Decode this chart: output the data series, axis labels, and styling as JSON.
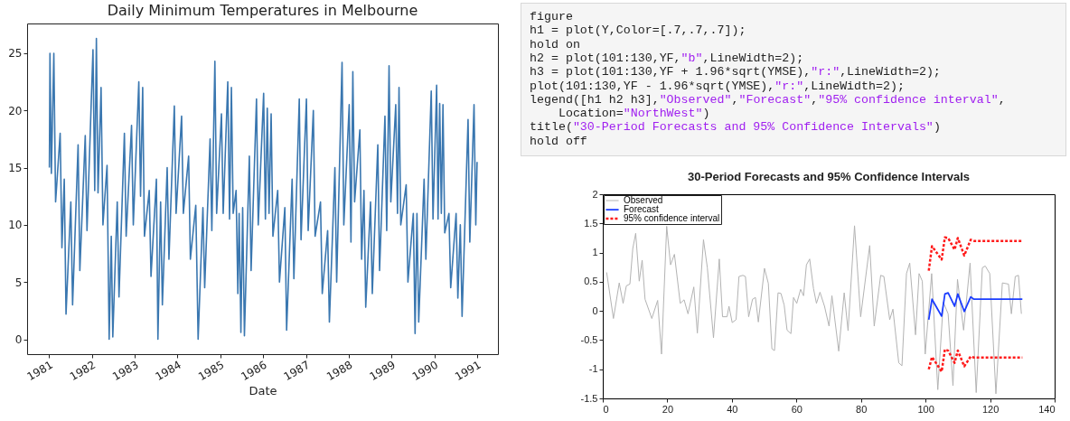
{
  "chart_data": [
    {
      "type": "line",
      "title": "Daily Minimum Temperatures in Melbourne",
      "xlabel": "Date",
      "color": "#3a77b0",
      "line_style": "solid",
      "xlim": [
        "1980-06-27",
        "1991-06-27"
      ],
      "xticks": [
        {
          "value": "1981",
          "label": "1981"
        },
        {
          "value": "1982",
          "label": "1982"
        },
        {
          "value": "1983",
          "label": "1983"
        },
        {
          "value": "1984",
          "label": "1984"
        },
        {
          "value": "1985",
          "label": "1985"
        },
        {
          "value": "1986",
          "label": "1986"
        },
        {
          "value": "1987",
          "label": "1987"
        },
        {
          "value": "1988",
          "label": "1988"
        },
        {
          "value": "1989",
          "label": "1989"
        },
        {
          "value": "1990",
          "label": "1990"
        },
        {
          "value": "1991",
          "label": "1991"
        }
      ],
      "ylim": [
        -1.3,
        27.6
      ],
      "yticks": [
        0,
        5,
        10,
        15,
        20,
        25
      ],
      "x": [
        "1981-01-03",
        "1981-01-08",
        "1981-01-20",
        "1981-02-10",
        "1981-02-25",
        "1981-04-05",
        "1981-04-20",
        "1981-05-10",
        "1981-05-25",
        "1981-07-05",
        "1981-07-20",
        "1981-09-05",
        "1981-09-20",
        "1981-11-05",
        "1981-11-20",
        "1982-01-10",
        "1982-01-25",
        "1982-02-08",
        "1982-02-22",
        "1982-03-20",
        "1982-04-05",
        "1982-05-10",
        "1982-05-28",
        "1982-06-15",
        "1982-06-28",
        "1982-08-05",
        "1982-08-20",
        "1982-10-05",
        "1982-10-20",
        "1982-12-05",
        "1982-12-20",
        "1983-02-05",
        "1983-02-20",
        "1983-03-10",
        "1983-03-25",
        "1983-05-05",
        "1983-05-20",
        "1983-07-05",
        "1983-07-18",
        "1983-08-10",
        "1983-08-25",
        "1983-10-05",
        "1983-10-20",
        "1983-12-05",
        "1983-12-20",
        "1984-02-05",
        "1984-02-20",
        "1984-04-05",
        "1984-04-20",
        "1984-06-05",
        "1984-06-25",
        "1984-08-05",
        "1984-08-20",
        "1984-10-05",
        "1984-10-20",
        "1984-11-15",
        "1984-11-30",
        "1985-01-10",
        "1985-01-25",
        "1985-03-05",
        "1985-03-20",
        "1985-04-05",
        "1985-04-20",
        "1985-05-15",
        "1985-05-30",
        "1985-06-10",
        "1985-06-25",
        "1985-07-10",
        "1985-07-25",
        "1985-09-05",
        "1985-09-20",
        "1985-11-05",
        "1985-11-20",
        "1986-01-05",
        "1986-01-20",
        "1986-02-05",
        "1986-02-20",
        "1986-03-10",
        "1986-03-25",
        "1986-05-05",
        "1986-05-20",
        "1986-07-05",
        "1986-07-20",
        "1986-09-05",
        "1986-09-20",
        "1986-11-05",
        "1986-11-20",
        "1987-01-05",
        "1987-01-20",
        "1987-03-05",
        "1987-03-20",
        "1987-05-05",
        "1987-05-20",
        "1987-07-05",
        "1987-07-20",
        "1987-09-05",
        "1987-09-20",
        "1987-11-05",
        "1987-11-20",
        "1988-01-05",
        "1988-01-20",
        "1988-02-05",
        "1988-02-20",
        "1988-04-05",
        "1988-04-20",
        "1988-05-10",
        "1988-05-25",
        "1988-07-05",
        "1988-07-20",
        "1988-09-05",
        "1988-09-20",
        "1988-11-05",
        "1988-11-20",
        "1988-12-10",
        "1988-12-25",
        "1989-02-05",
        "1989-02-20",
        "1989-03-05",
        "1989-03-20",
        "1989-05-05",
        "1989-05-20",
        "1989-07-05",
        "1989-07-20",
        "1989-08-05",
        "1989-08-20",
        "1989-10-05",
        "1989-10-20",
        "1989-12-05",
        "1989-12-20",
        "1990-01-20",
        "1990-02-01",
        "1990-02-15",
        "1990-03-01",
        "1990-03-15",
        "1990-03-30",
        "1990-05-05",
        "1990-05-20",
        "1990-07-05",
        "1990-07-20",
        "1990-08-10",
        "1990-08-25",
        "1990-10-15",
        "1990-10-30",
        "1990-12-05",
        "1990-12-20",
        "1990-12-31"
      ],
      "values": [
        15,
        25,
        14.5,
        25,
        12,
        18,
        8,
        14,
        2.2,
        12,
        3,
        17,
        6,
        17.8,
        9.5,
        25.3,
        13,
        26.3,
        12.8,
        22,
        10,
        15.2,
        0,
        9,
        0.2,
        12,
        3.7,
        18,
        9,
        18.7,
        10,
        22.5,
        12.5,
        22,
        9,
        13,
        5.5,
        14,
        0,
        12,
        3,
        15,
        7,
        20.4,
        11,
        19.5,
        11,
        16,
        7,
        11.7,
        0,
        11.5,
        4.5,
        17.5,
        9.5,
        24.3,
        11,
        19.7,
        11,
        22.5,
        10.5,
        22,
        11,
        13,
        4,
        11,
        0.6,
        11.5,
        0.3,
        16,
        6,
        21,
        10,
        21.5,
        10.5,
        20.2,
        11,
        19.7,
        9,
        13,
        5,
        11.5,
        0.8,
        14,
        5.3,
        21,
        8.7,
        21,
        9.5,
        20,
        9,
        12,
        4,
        9.5,
        1.5,
        15,
        5,
        24.2,
        10,
        20.5,
        8.5,
        23.4,
        12,
        18.3,
        7,
        13,
        2.8,
        12,
        4,
        17,
        6,
        19.5,
        9.5,
        23.9,
        12,
        20.5,
        11,
        22,
        10,
        13.5,
        5,
        11,
        0.5,
        11,
        1.5,
        14,
        7,
        21.7,
        10.5,
        22.2,
        10.5,
        20.6,
        11,
        20.5,
        9.3,
        11,
        4.5,
        11,
        3.6,
        10,
        2,
        19.2,
        8.5,
        20.5,
        10,
        15.5
      ]
    },
    {
      "type": "other",
      "annotations": [
        "figure",
        "h1 = plot(Y,Color=[.7,.7,.7]);",
        "hold on",
        "h2 = plot(101:130,YF,\"b\",LineWidth=2);",
        "h3 = plot(101:130,YF + 1.96*sqrt(YMSE),\"r:\",LineWidth=2);",
        "plot(101:130,YF - 1.96*sqrt(YMSE),\"r:\",LineWidth=2);",
        "legend([h1 h2 h3],\"Observed\",\"Forecast\",\"95% confidence interval\",",
        "    Location=\"NorthWest\")",
        "title(\"30-Period Forecasts and 95% Confidence Intervals\")",
        "hold off"
      ]
    },
    {
      "type": "line",
      "title": "30-Period Forecasts and 95% Confidence Intervals",
      "xlim": [
        0,
        140
      ],
      "xticks": [
        0,
        20,
        40,
        60,
        80,
        100,
        120,
        140
      ],
      "ylim": [
        -1.5,
        2
      ],
      "yticks": [
        -1.5,
        -1,
        -0.5,
        0,
        0.5,
        1,
        1.5,
        2
      ],
      "legend": "top left",
      "series": [
        {
          "name": "Observed",
          "color": "#b3b3b3",
          "line_style": "solid",
          "x": [
            1.2,
            3.3,
            5.1,
            6.3,
            7.3,
            8.4,
            9.3,
            10.2,
            11.3,
            12.2,
            13.1,
            15.2,
            17,
            18.2,
            19.8,
            21,
            22.2,
            24,
            25.2,
            26.4,
            28.2,
            29.3,
            31.2,
            32.4,
            34.3,
            36.1,
            37.1,
            38.5,
            39.1,
            40.1,
            41.3,
            42.2,
            43.4,
            44.2,
            45.2,
            46.4,
            47.3,
            48.2,
            50.1,
            51.3,
            52.4,
            53.2,
            54.3,
            55.2,
            56.2,
            57.1,
            58.3,
            59.1,
            60.1,
            61.3,
            62.2,
            63.1,
            64.1,
            65.3,
            66.2,
            67.3,
            68.7,
            70.1,
            71,
            73.1,
            74.8,
            76,
            78,
            79.9,
            82.7,
            84.1,
            86.1,
            87.1,
            88.9,
            89.9,
            91.7,
            92.7,
            94.1,
            95.1,
            96.9,
            98,
            99,
            99.9,
            101.9,
            103.8,
            105.5,
            107,
            108.5,
            109.9,
            111.8,
            113.8,
            115.7,
            117.6,
            118.5,
            119.9,
            121.8,
            123.8,
            125.7,
            126.6,
            127.8,
            128.8,
            129.7
          ],
          "values": [
            0.66,
            -0.13,
            0.48,
            0.13,
            0.43,
            0.46,
            1.07,
            1.33,
            0.51,
            0.87,
            0.2,
            -0.13,
            0.18,
            -0.74,
            1.45,
            0.79,
            0.97,
            0.13,
            0.19,
            -0.05,
            0.41,
            -0.38,
            1.22,
            0.74,
            -0.46,
            0.89,
            -0.1,
            -0.1,
            0.08,
            -0.2,
            -0.15,
            0.59,
            0.61,
            0.59,
            -0.1,
            0.2,
            0.23,
            -0.19,
            0.73,
            0.47,
            -0.65,
            -0.68,
            0.31,
            0.3,
            0.1,
            -0.33,
            -0.39,
            0.23,
            0.13,
            0.37,
            0.26,
            0.79,
            0.89,
            0.38,
            0.13,
            0.32,
            0.08,
            -0.26,
            0.26,
            -0.69,
            0.31,
            -0.34,
            1.46,
            -0.1,
            1.12,
            -0.26,
            0.61,
            0.59,
            -0.15,
            0.03,
            -0.89,
            -0.94,
            0.64,
            0.82,
            -0.41,
            0.64,
            0.51,
            -0.74,
            0.64,
            -1.35,
            0.15,
            -0.05,
            -1.28,
            0.54,
            -0.33,
            0.82,
            -1.4,
            0.74,
            0.77,
            0.64,
            -1.42,
            0.48,
            0.46,
            -0.05,
            0.59,
            0.61,
            -0.05
          ]
        },
        {
          "name": "Forecast",
          "color": "#1a3cff",
          "line_style": "solid",
          "x": [
            101,
            102,
            105,
            106,
            107,
            109,
            110,
            112,
            114,
            115,
            130
          ],
          "values": [
            -0.15,
            0.2,
            -0.09,
            0.29,
            0.31,
            0.08,
            0.29,
            -0.01,
            0.24,
            0.2,
            0.2
          ]
        },
        {
          "name": "95% confidence interval",
          "color": "#ff1a1a",
          "line_style": "dotted",
          "x": [
            101,
            102,
            105,
            106,
            107,
            109,
            110,
            112,
            114,
            115,
            130
          ],
          "values": [
            0.69,
            1.11,
            0.88,
            1.26,
            1.25,
            1.05,
            1.25,
            0.95,
            1.22,
            1.2,
            1.2
          ]
        },
        {
          "color": "#ff1a1a",
          "line_style": "dotted",
          "x": [
            101,
            102,
            105,
            106,
            107,
            109,
            110,
            112,
            114,
            115,
            130
          ],
          "values": [
            -1,
            -0.79,
            -1.04,
            -0.66,
            -0.68,
            -0.89,
            -0.68,
            -0.95,
            -0.78,
            -0.8,
            -0.8
          ]
        }
      ]
    }
  ]
}
